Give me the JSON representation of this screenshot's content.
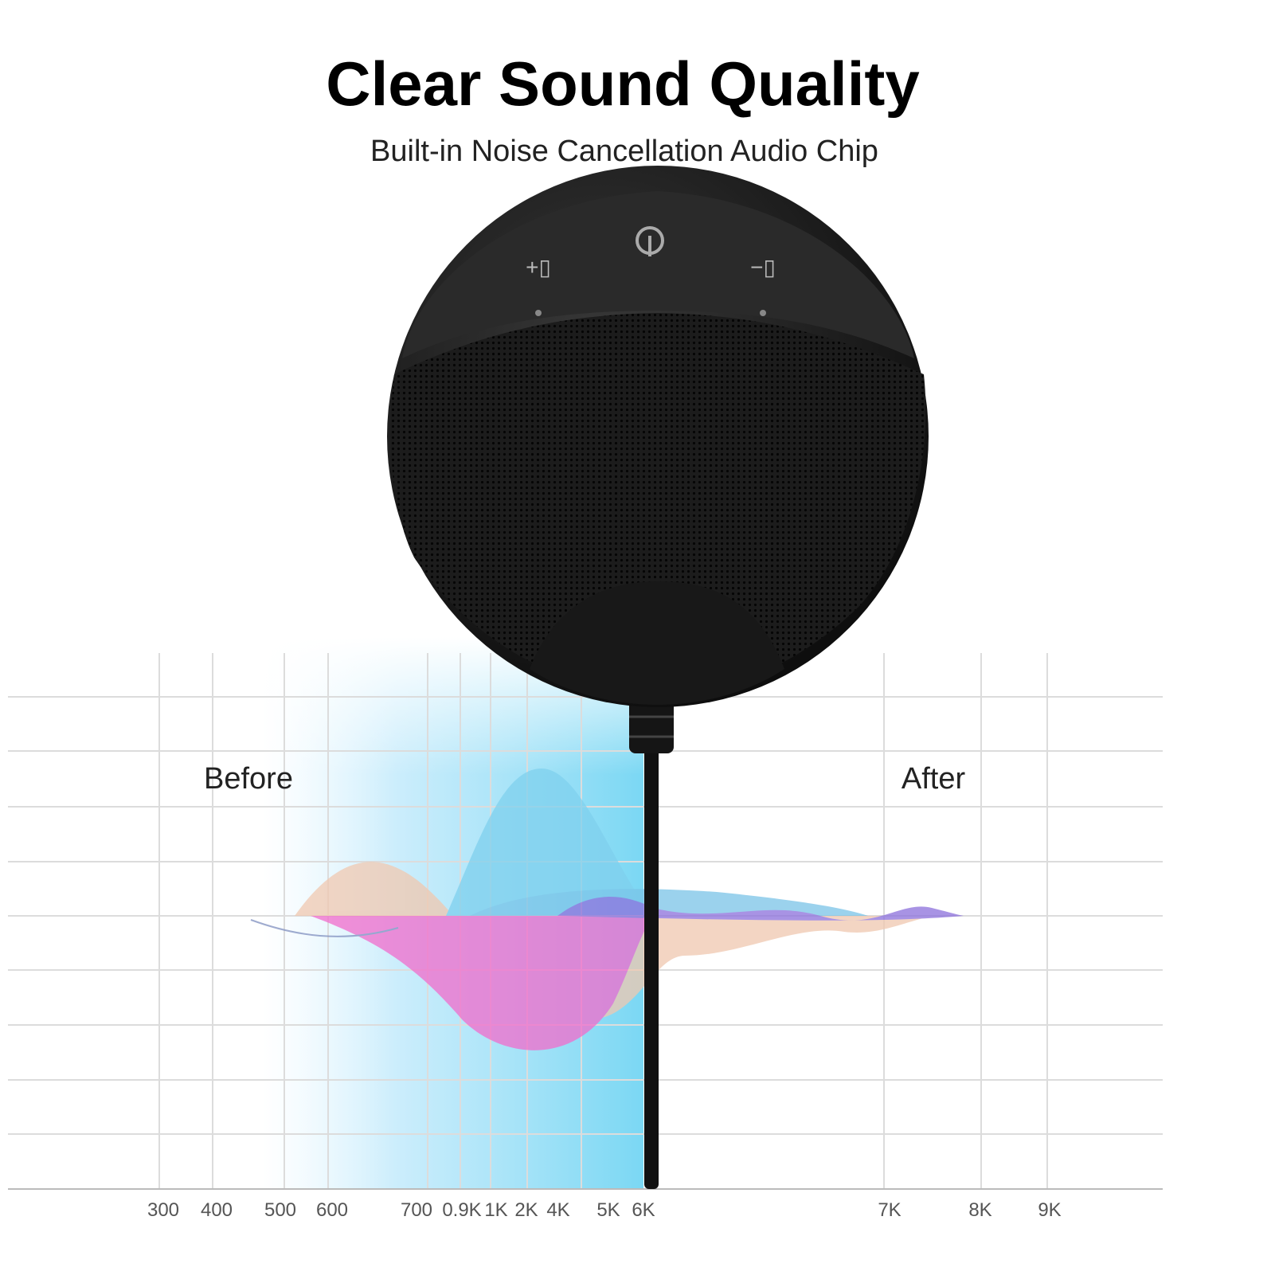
{
  "header": {
    "title": "Clear Sound Quality",
    "subtitle": "Built-in Noise Cancellation Audio Chip"
  },
  "labels": {
    "before": "Before",
    "after": "After"
  },
  "axis": {
    "ticks": [
      "300",
      "400",
      "500",
      "600",
      "700",
      "0.9K",
      "1K",
      "2K",
      "4K",
      "5K",
      "6K",
      "7K",
      "8K",
      "9K"
    ]
  }
}
